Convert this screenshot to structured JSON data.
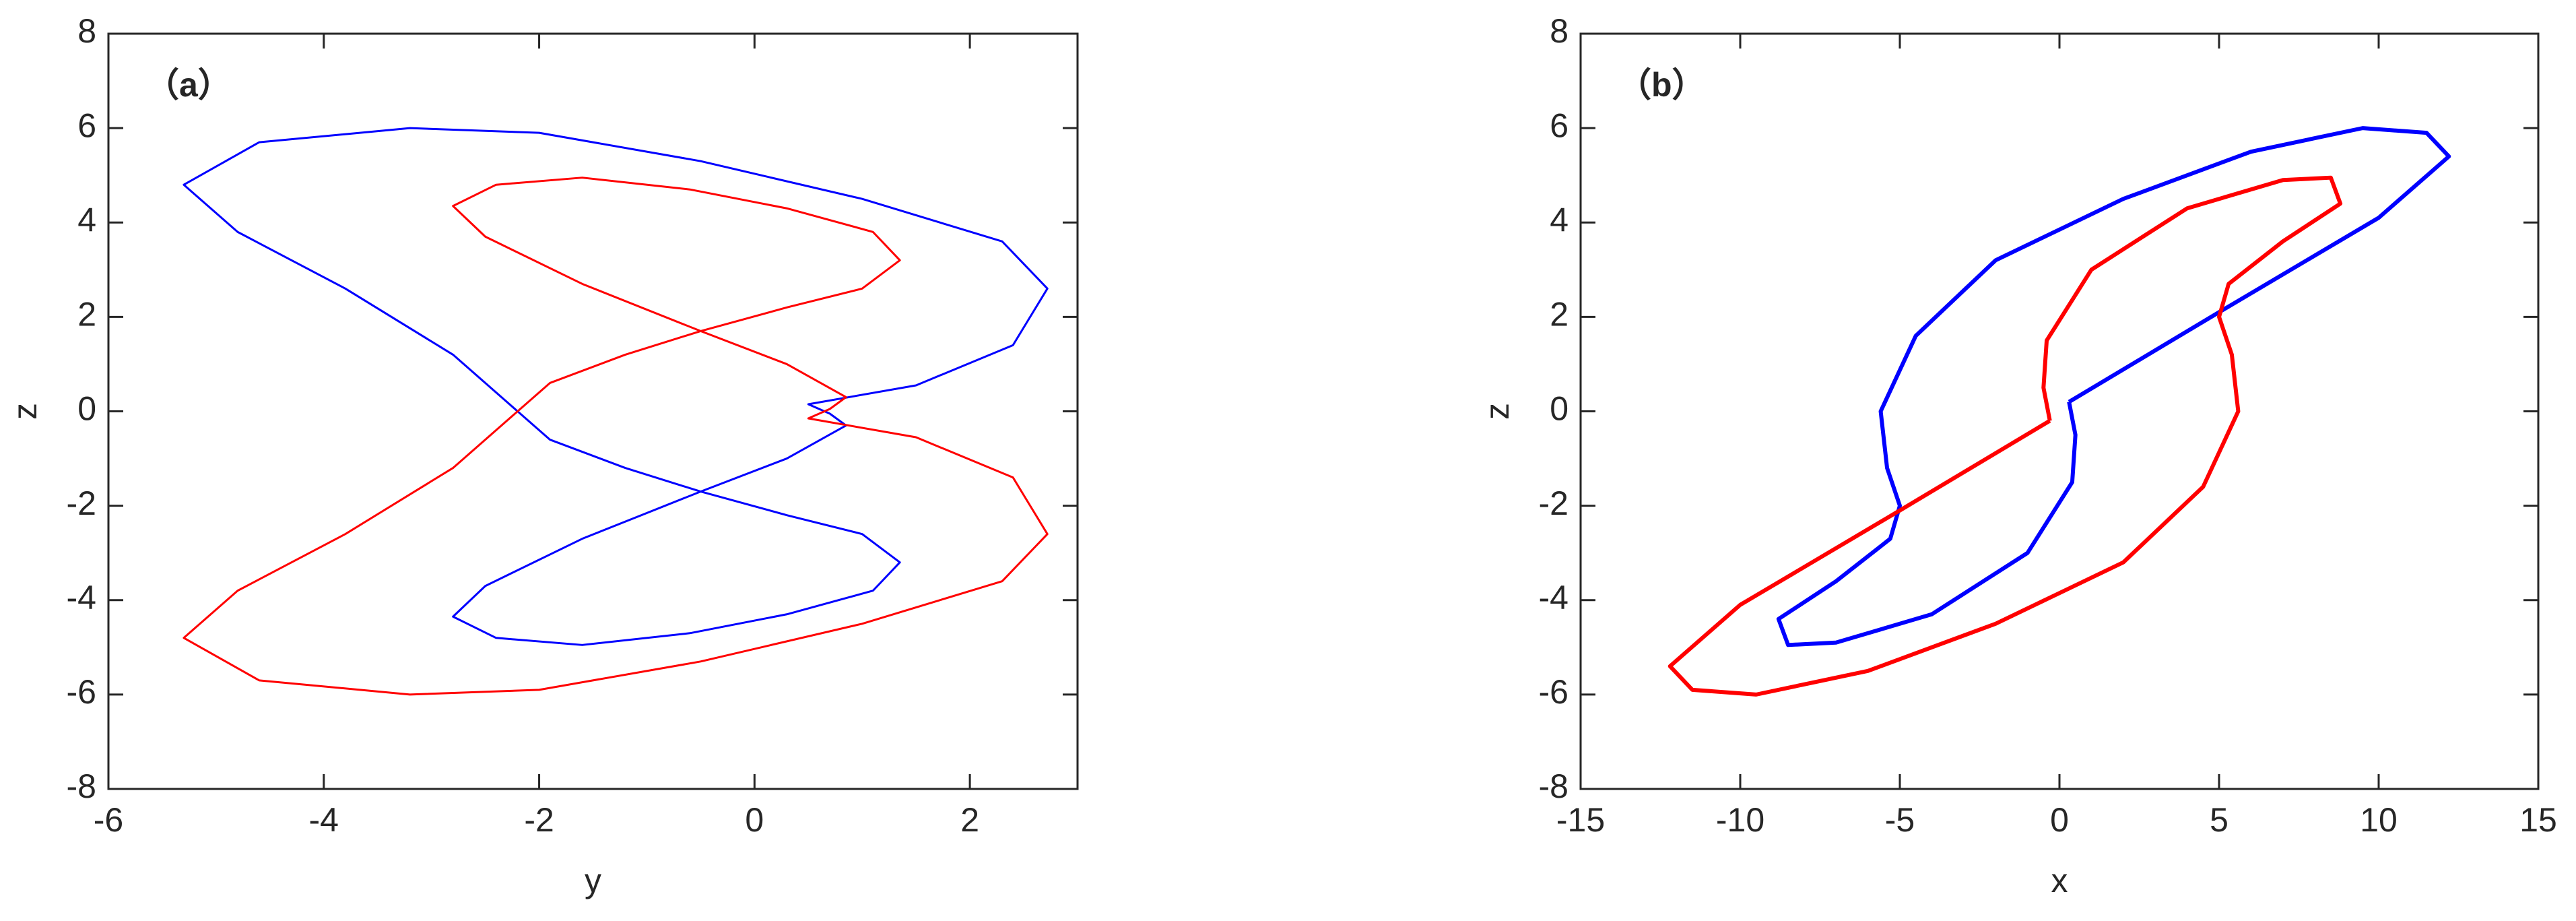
{
  "chart_data": [
    {
      "type": "line",
      "title": "（a）",
      "x_label": "y",
      "y_label": "z",
      "xlim": [
        -6,
        3
      ],
      "ylim": [
        -8,
        8
      ],
      "xticks": [
        -6,
        -4,
        -2,
        0,
        2
      ],
      "yticks": [
        -8,
        -6,
        -4,
        -2,
        0,
        2,
        4,
        6,
        8
      ],
      "series": [
        {
          "color": "#0000ff",
          "x": [
            -2.2,
            -1.9,
            -1.2,
            -0.5,
            0.3,
            1.0,
            1.35,
            1.1,
            0.3,
            -0.6,
            -1.6,
            -2.4,
            -2.8,
            -2.5,
            -1.6,
            -0.5,
            0.3,
            0.85,
            0.7,
            0.5,
            1.5,
            2.4,
            2.72,
            2.3,
            1.0,
            -0.5,
            -2.0,
            -3.2,
            -4.6,
            -5.3,
            -4.8,
            -3.8,
            -2.8,
            -2.2
          ],
          "values": [
            0,
            -0.6,
            -1.2,
            -1.7,
            -2.2,
            -2.6,
            -3.2,
            -3.8,
            -4.3,
            -4.7,
            -4.95,
            -4.8,
            -4.35,
            -3.7,
            -2.7,
            -1.7,
            -1.0,
            -0.3,
            -0.05,
            0.15,
            0.55,
            1.4,
            2.6,
            3.6,
            4.5,
            5.3,
            5.9,
            6.0,
            5.7,
            4.8,
            3.8,
            2.6,
            1.2,
            0
          ]
        },
        {
          "color": "#ff0000",
          "x": [
            -2.2,
            -1.9,
            -1.2,
            -0.5,
            0.3,
            1.0,
            1.35,
            1.1,
            0.3,
            -0.6,
            -1.6,
            -2.4,
            -2.8,
            -2.5,
            -1.6,
            -0.5,
            0.3,
            0.85,
            0.7,
            0.5,
            1.5,
            2.4,
            2.72,
            2.3,
            1.0,
            -0.5,
            -2.0,
            -3.2,
            -4.6,
            -5.3,
            -4.8,
            -3.8,
            -2.8,
            -2.2
          ],
          "values": [
            0,
            0.6,
            1.2,
            1.7,
            2.2,
            2.6,
            3.2,
            3.8,
            4.3,
            4.7,
            4.95,
            4.8,
            4.35,
            3.7,
            2.7,
            1.7,
            1.0,
            0.3,
            0.05,
            -0.15,
            -0.55,
            -1.4,
            -2.6,
            -3.6,
            -4.5,
            -5.3,
            -5.9,
            -6.0,
            -5.7,
            -4.8,
            -3.8,
            -2.6,
            -1.2,
            0
          ]
        }
      ]
    },
    {
      "type": "line",
      "title": "（b）",
      "x_label": "x",
      "y_label": "z",
      "xlim": [
        -15,
        15
      ],
      "ylim": [
        -8,
        8
      ],
      "xticks": [
        -15,
        -10,
        -5,
        0,
        5,
        10,
        15
      ],
      "yticks": [
        -8,
        -6,
        -4,
        -2,
        0,
        2,
        4,
        6,
        8
      ],
      "series": [
        {
          "color": "#0000ff",
          "x": [
            0.3,
            5,
            10,
            12.2,
            11.5,
            9.5,
            6,
            2,
            -2,
            -4.5,
            -5.6,
            -5.4,
            -5.0,
            -5.3,
            -7,
            -8.8,
            -8.5,
            -7,
            -4,
            -1,
            0.4,
            0.5,
            0.3
          ],
          "values": [
            0.2,
            2.1,
            4.1,
            5.4,
            5.9,
            6.0,
            5.5,
            4.5,
            3.2,
            1.6,
            0,
            -1.2,
            -2.0,
            -2.7,
            -3.6,
            -4.4,
            -4.95,
            -4.9,
            -4.3,
            -3.0,
            -1.5,
            -0.5,
            0.2
          ]
        },
        {
          "color": "#ff0000",
          "x": [
            -0.3,
            -5,
            -10,
            -12.2,
            -11.5,
            -9.5,
            -6,
            -2,
            2,
            4.5,
            5.6,
            5.4,
            5.0,
            5.3,
            7,
            8.8,
            8.5,
            7,
            4,
            1,
            -0.4,
            -0.5,
            -0.3
          ],
          "values": [
            -0.2,
            -2.1,
            -4.1,
            -5.4,
            -5.9,
            -6.0,
            -5.5,
            -4.5,
            -3.2,
            -1.6,
            0,
            1.2,
            2.0,
            2.7,
            3.6,
            4.4,
            4.95,
            4.9,
            4.3,
            3.0,
            1.5,
            0.5,
            -0.2
          ]
        }
      ]
    }
  ]
}
